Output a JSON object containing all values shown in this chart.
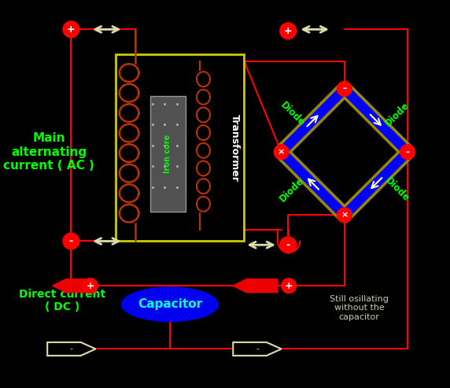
{
  "bg_color": "#000000",
  "circuit_color": "#ff0000",
  "transformer_box_color": "#cccc00",
  "iron_core_text": "Iron core",
  "iron_core_text_color": "#00ff00",
  "transformer_text": "Transformer",
  "diode_body_color": "#0000ff",
  "diode_edge_color": "#998800",
  "diode_arrow_color": "#ffffcc",
  "diode_label_color": "#00ff00",
  "node_color": "#ff0000",
  "ac_label": [
    "Main",
    "alternating",
    "current ( AC )"
  ],
  "ac_label_color": "#00ff00",
  "dc_label": [
    "Direct current",
    "( DC )"
  ],
  "dc_label_color": "#00ff00",
  "capacitor_label": "Capacitor",
  "capacitor_color": "#0000ee",
  "capacitor_text_color": "#00ffff",
  "oscillating_label": [
    "Still osillating",
    "without the",
    "capacitor"
  ],
  "oscillating_label_color": "#ccccaa",
  "arrow_color": "#ddddaa",
  "red_arrow_color": "#ee0000",
  "coil_color": "#bb3300"
}
